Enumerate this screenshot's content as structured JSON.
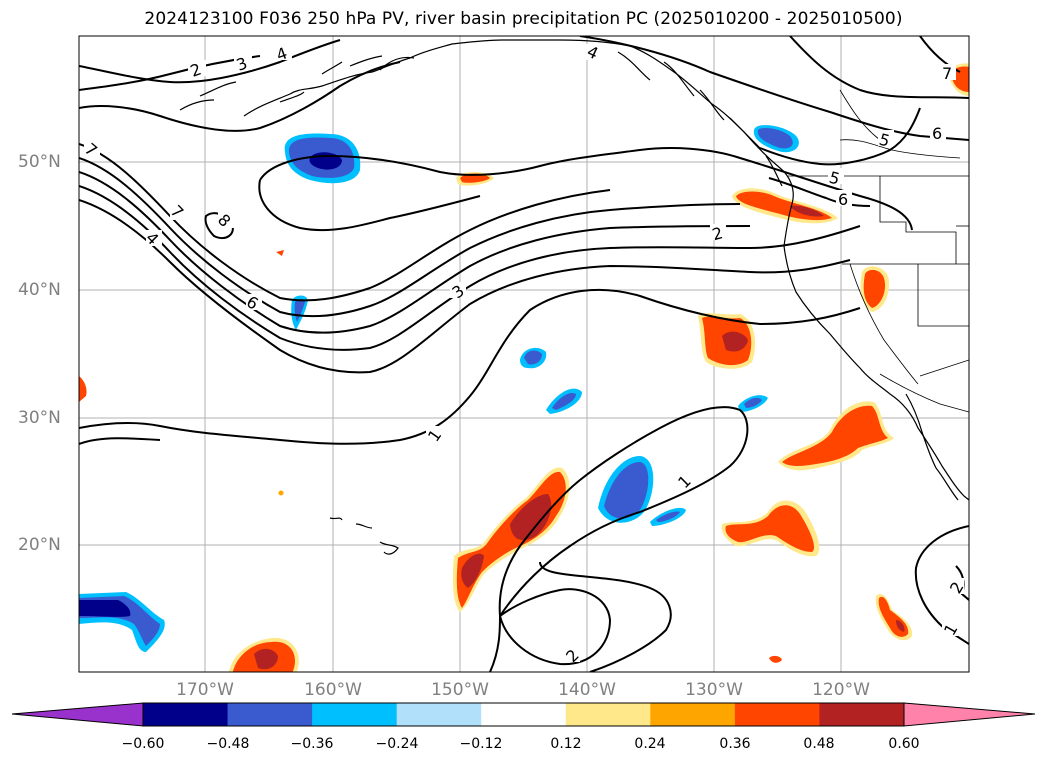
{
  "title": "2024123100 F036 250 hPa PV, river basin precipitation PC (2025010200 - 2025010500)",
  "lat_labels": [
    "50°N",
    "40°N",
    "30°N",
    "20°N"
  ],
  "lon_labels": [
    "170°W",
    "160°W",
    "150°W",
    "140°W",
    "130°W",
    "120°W"
  ],
  "colorbar": {
    "labels": [
      "−0.60",
      "−0.48",
      "−0.36",
      "−0.24",
      "−0.12",
      "0.12",
      "0.24",
      "0.36",
      "0.48",
      "0.60"
    ],
    "under_color": "#9932cc",
    "colors": [
      "#00008b",
      "#3a5bd0",
      "#00bfff",
      "#b0e0fa",
      "#ffffff",
      "#ffe88a",
      "#ffa500",
      "#ff4500",
      "#b22222"
    ],
    "over_color": "#ff82ab"
  },
  "contour_labels": [
    "2",
    "3",
    "4",
    "4",
    "7",
    "8",
    "7",
    "4",
    "6",
    "3",
    "2",
    "5",
    "5",
    "6",
    "6",
    "1",
    "1",
    "1",
    "2",
    "2",
    "1",
    "7"
  ]
}
